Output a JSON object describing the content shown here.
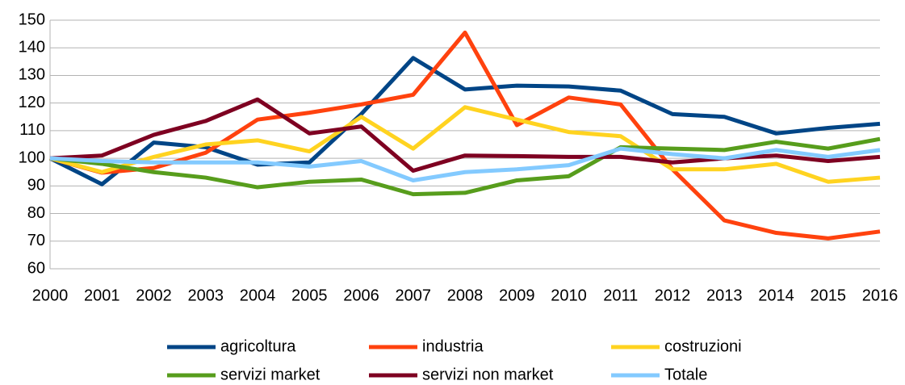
{
  "chart_data": {
    "type": "line",
    "categories": [
      "2000",
      "2001",
      "2002",
      "2003",
      "2004",
      "2005",
      "2006",
      "2007",
      "2008",
      "2009",
      "2010",
      "2011",
      "2012",
      "2013",
      "2014",
      "2015",
      "2016"
    ],
    "series": [
      {
        "name": "agricoltura",
        "color": "#004586",
        "values": [
          100,
          90.6,
          105.7,
          104,
          97.7,
          98.5,
          116,
          136.3,
          124.9,
          126.3,
          126,
          124.5,
          116,
          115,
          109,
          111,
          112.5
        ]
      },
      {
        "name": "industria",
        "color": "#ff420e",
        "values": [
          100,
          94.8,
          96.5,
          102,
          114,
          116.5,
          119.5,
          123,
          145.5,
          112,
          122,
          119.5,
          96,
          77.5,
          73,
          71,
          73.5
        ]
      },
      {
        "name": "costruzioni",
        "color": "#ffd320",
        "values": [
          100,
          95,
          100.5,
          105,
          106.5,
          102.5,
          115,
          103.5,
          118.5,
          114,
          109.5,
          108,
          96,
          96,
          98,
          91.5,
          93
        ]
      },
      {
        "name": "servizi market",
        "color": "#579d1c",
        "values": [
          100,
          98,
          95,
          93,
          89.5,
          91.5,
          92.3,
          87,
          87.5,
          92,
          93.5,
          104,
          103.5,
          103,
          106,
          103.5,
          107
        ]
      },
      {
        "name": "servizi non market",
        "color": "#7e0021",
        "values": [
          100,
          101,
          108.5,
          113.5,
          121.3,
          109,
          111.5,
          95.5,
          101,
          100.8,
          100.5,
          100.5,
          98.5,
          100,
          101,
          99,
          100.5
        ]
      },
      {
        "name": "Totale",
        "color": "#83caff",
        "values": [
          100,
          99,
          98.5,
          98.5,
          98.5,
          97,
          99,
          92,
          95,
          96,
          97.5,
          103.5,
          101.5,
          100,
          103,
          100.5,
          103
        ]
      }
    ],
    "ylim": [
      60,
      150
    ],
    "yticks": [
      60,
      70,
      80,
      90,
      100,
      110,
      120,
      130,
      140,
      150
    ],
    "grid": true,
    "legend": "bottom"
  }
}
